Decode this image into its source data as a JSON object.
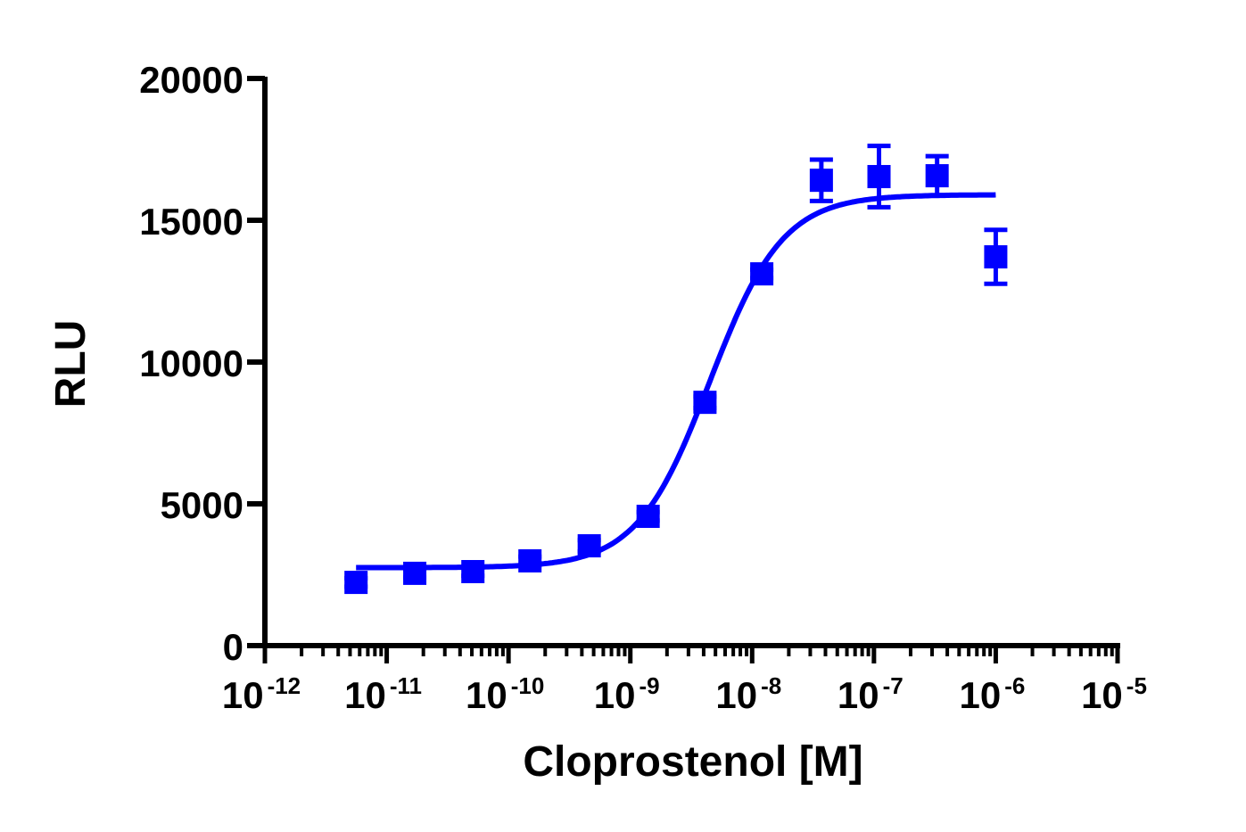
{
  "chart_data": {
    "type": "scatter",
    "xlabel": "Cloprostenol [M]",
    "ylabel": "RLU",
    "x_scale": "log",
    "xlim": [
      1e-12,
      1e-05
    ],
    "ylim": [
      0,
      20000
    ],
    "grid": false,
    "y_ticks": [
      "0",
      "5000",
      "10000",
      "15000",
      "20000"
    ],
    "x_ticks": [
      {
        "base": "10",
        "exp": "-12"
      },
      {
        "base": "10",
        "exp": "-11"
      },
      {
        "base": "10",
        "exp": "-10"
      },
      {
        "base": "10",
        "exp": "-9"
      },
      {
        "base": "10",
        "exp": "-8"
      },
      {
        "base": "10",
        "exp": "-7"
      },
      {
        "base": "10",
        "exp": "-6"
      },
      {
        "base": "10",
        "exp": "-5"
      }
    ],
    "color": "#0000ff",
    "series": [
      {
        "x": [
          5.6e-12,
          1.7e-11,
          5.1e-11,
          1.5e-10,
          4.6e-10,
          1.4e-09,
          4.1e-09,
          1.2e-08,
          3.7e-08,
          1.1e-07,
          3.3e-07,
          1e-06
        ],
        "y": [
          2230,
          2550,
          2610,
          2990,
          3520,
          4560,
          8580,
          13110,
          16410,
          16540,
          16570,
          13710
        ],
        "error": [
          150,
          150,
          150,
          150,
          200,
          150,
          200,
          150,
          730,
          1080,
          690,
          950
        ]
      }
    ],
    "fit": {
      "model": "sigmoidal dose-response",
      "bottom": 2750,
      "top": 15900,
      "ec50": 4.5e-09,
      "hill": 1.45,
      "x_range": [
        5.6e-12,
        1e-06
      ]
    }
  }
}
